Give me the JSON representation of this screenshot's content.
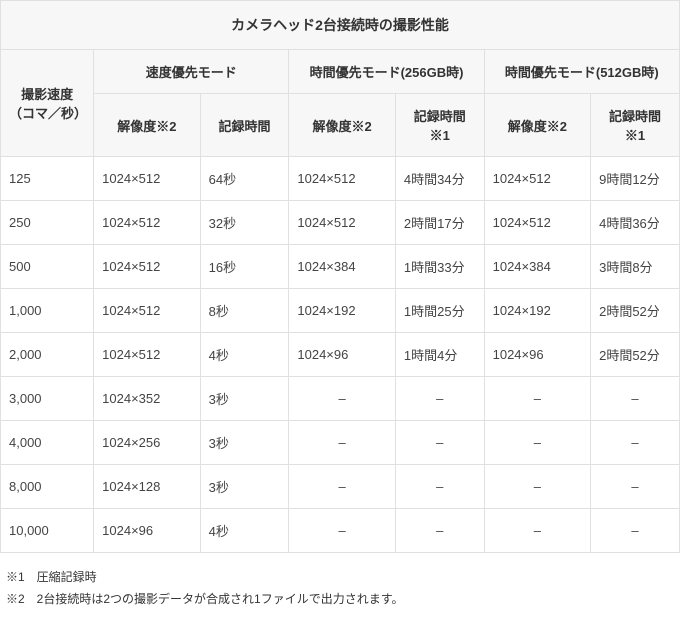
{
  "title": "カメラヘッド2台接続時の撮影性能",
  "columns": {
    "speed": "撮影速度（コマ／秒）",
    "group_speed_priority": "速度優先モード",
    "group_time_256": "時間優先モード(256GB時)",
    "group_time_512": "時間優先モード(512GB時)",
    "resolution_n2": "解像度※2",
    "rec_time": "記録時間",
    "rec_time_n1": "記録時間※1"
  },
  "rows": [
    {
      "speed": "125",
      "sp_res": "1024×512",
      "sp_time": "64秒",
      "t256_res": "1024×512",
      "t256_time": "4時間34分",
      "t512_res": "1024×512",
      "t512_time": "9時間12分"
    },
    {
      "speed": "250",
      "sp_res": "1024×512",
      "sp_time": "32秒",
      "t256_res": "1024×512",
      "t256_time": "2時間17分",
      "t512_res": "1024×512",
      "t512_time": "4時間36分"
    },
    {
      "speed": "500",
      "sp_res": "1024×512",
      "sp_time": "16秒",
      "t256_res": "1024×384",
      "t256_time": "1時間33分",
      "t512_res": "1024×384",
      "t512_time": "3時間8分"
    },
    {
      "speed": "1,000",
      "sp_res": "1024×512",
      "sp_time": "8秒",
      "t256_res": "1024×192",
      "t256_time": "1時間25分",
      "t512_res": "1024×192",
      "t512_time": "2時間52分"
    },
    {
      "speed": "2,000",
      "sp_res": "1024×512",
      "sp_time": "4秒",
      "t256_res": "1024×96",
      "t256_time": "1時間4分",
      "t512_res": "1024×96",
      "t512_time": "2時間52分"
    },
    {
      "speed": "3,000",
      "sp_res": "1024×352",
      "sp_time": "3秒",
      "t256_res": "–",
      "t256_time": "–",
      "t512_res": "–",
      "t512_time": "–"
    },
    {
      "speed": "4,000",
      "sp_res": "1024×256",
      "sp_time": "3秒",
      "t256_res": "–",
      "t256_time": "–",
      "t512_res": "–",
      "t512_time": "–"
    },
    {
      "speed": "8,000",
      "sp_res": "1024×128",
      "sp_time": "3秒",
      "t256_res": "–",
      "t256_time": "–",
      "t512_res": "–",
      "t512_time": "–"
    },
    {
      "speed": "10,000",
      "sp_res": "1024×96",
      "sp_time": "4秒",
      "t256_res": "–",
      "t256_time": "–",
      "t512_res": "–",
      "t512_time": "–"
    }
  ],
  "footnotes": {
    "n1": "※1　圧縮記録時",
    "n2": "※2　2台接続時は2つの撮影データが合成され1ファイルで出力されます。"
  },
  "style": {
    "header_bg": "#f7f7f7",
    "border_color": "#e0e0e0",
    "text_color": "#333333",
    "body_font_size": 13,
    "title_font_size": 14,
    "footnote_font_size": 12
  }
}
